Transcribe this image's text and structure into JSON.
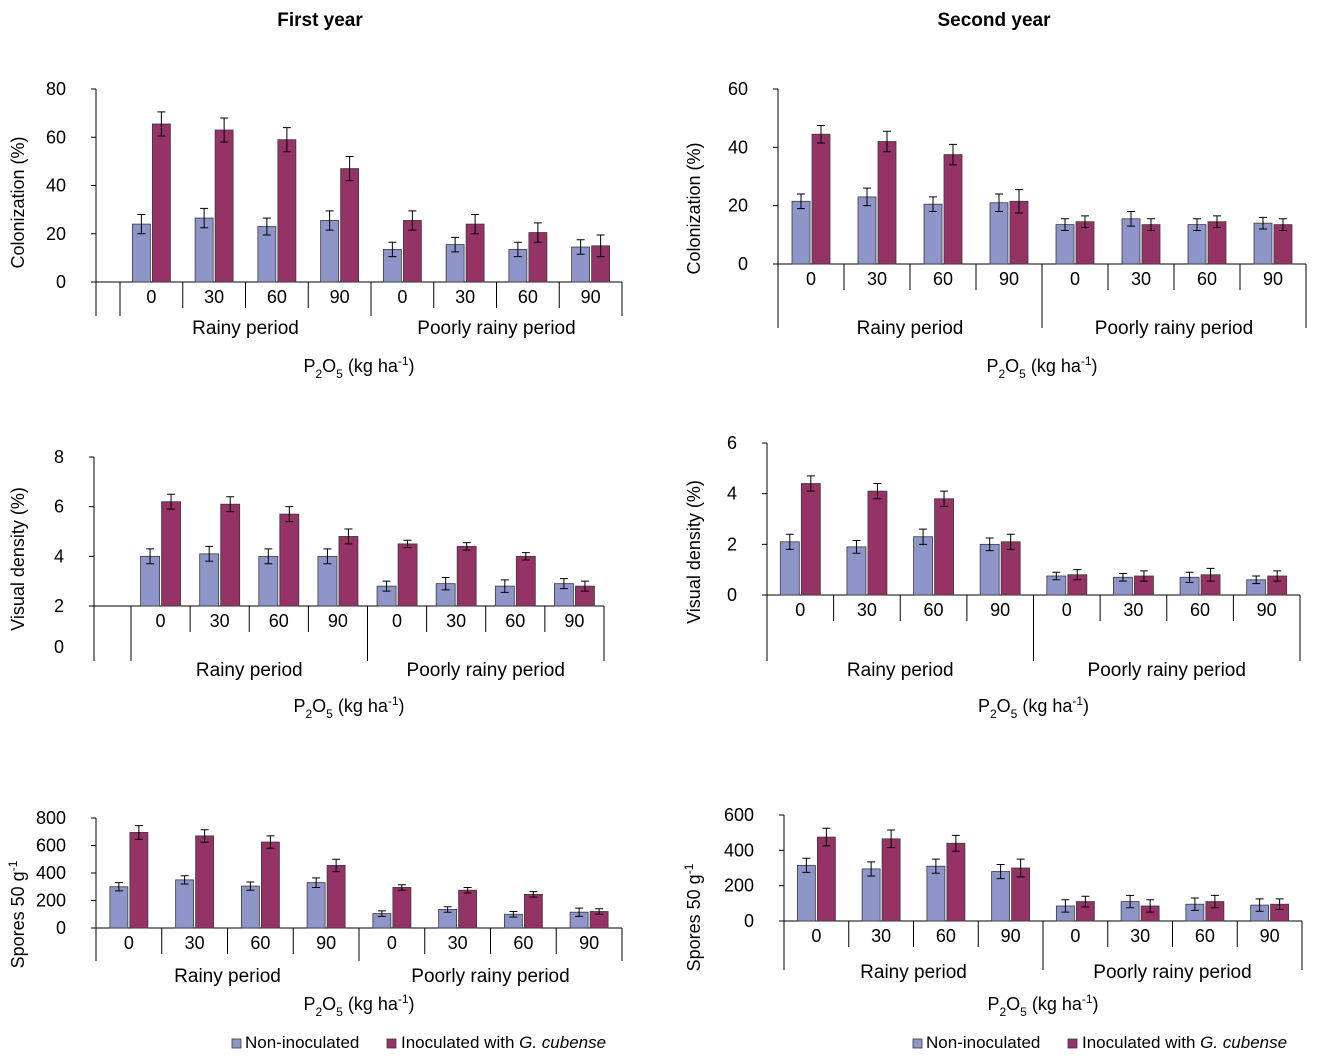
{
  "columns": [
    "First year",
    "Second year"
  ],
  "legend": {
    "non_inoculated": "Non-inoculated",
    "inoculated_prefix": "Inoculated with ",
    "inoculated_species": "G. cubense"
  },
  "colors": {
    "non_inoculated": "#8e95c9",
    "inoculated": "#963366"
  },
  "chart_data": [
    {
      "type": "bar",
      "column": "First year",
      "ylabel": "Colonization  (%)",
      "xlabel": {
        "base": "P",
        "sub1": "2",
        "mid": "O",
        "sub2": "5",
        "unit": " (kg ha",
        "sup": "-1",
        "close": ")"
      },
      "categories": [
        "0",
        "30",
        "60",
        "90",
        "0",
        "30",
        "60",
        "90"
      ],
      "groups": [
        "Rainy period",
        "Poorly rainy period"
      ],
      "yticks": [
        "0",
        "20",
        "40",
        "60",
        "80"
      ],
      "ylim": [
        0,
        80
      ],
      "series": [
        {
          "name": "Non-inoculated",
          "values": [
            24,
            26.5,
            23,
            25.5,
            13.5,
            15.5,
            13.5,
            14.5
          ],
          "errors": [
            4,
            4,
            3.5,
            4,
            3,
            3,
            3,
            3
          ]
        },
        {
          "name": "Inoculated with G. cubense",
          "values": [
            65.5,
            63,
            59,
            47,
            25.5,
            24,
            20.5,
            15
          ],
          "errors": [
            5,
            5,
            5,
            5,
            4,
            4,
            4,
            4.5
          ]
        }
      ]
    },
    {
      "type": "bar",
      "column": "Second year",
      "ylabel": "Colonization  (%)",
      "xlabel": {
        "base": "P",
        "sub1": "2",
        "mid": "O",
        "sub2": "5",
        "unit": " (kg ha",
        "sup": "-1",
        "close": ")"
      },
      "categories": [
        "0",
        "30",
        "60",
        "90",
        "0",
        "30",
        "60",
        "90"
      ],
      "groups": [
        "Rainy period",
        "Poorly rainy period"
      ],
      "yticks": [
        "0",
        "20",
        "40",
        "60"
      ],
      "ylim": [
        0,
        60
      ],
      "series": [
        {
          "name": "Non-inoculated",
          "values": [
            21.5,
            23,
            20.5,
            21,
            13.5,
            15.5,
            13.5,
            14
          ],
          "errors": [
            2.5,
            3,
            2.5,
            3,
            2,
            2.5,
            2,
            2
          ]
        },
        {
          "name": "Inoculated with G. cubense",
          "values": [
            44.5,
            42,
            37.5,
            21.5,
            14.5,
            13.5,
            14.5,
            13.5
          ],
          "errors": [
            3,
            3.5,
            3.5,
            4,
            2,
            2,
            2,
            2
          ]
        }
      ]
    },
    {
      "type": "bar",
      "column": "First year",
      "ylabel": "Visual density (%)",
      "xlabel": {
        "base": "P",
        "sub1": "2",
        "mid": "O",
        "sub2": "5",
        "unit": " (kg ha",
        "sup": "-1",
        "close": ")"
      },
      "categories": [
        "0",
        "30",
        "60",
        "90",
        "0",
        "30",
        "60",
        "90"
      ],
      "groups": [
        "Rainy period",
        "Poorly rainy period"
      ],
      "yticks": [
        "0",
        "2",
        "4",
        "6",
        "8"
      ],
      "ylim": [
        2,
        8
      ],
      "extra_bottom_tick": "0",
      "series": [
        {
          "name": "Non-inoculated",
          "values": [
            4.0,
            4.1,
            4.0,
            4.0,
            2.8,
            2.9,
            2.8,
            2.9
          ],
          "errors": [
            0.3,
            0.3,
            0.3,
            0.3,
            0.2,
            0.25,
            0.25,
            0.2
          ]
        },
        {
          "name": "Inoculated with G. cubense",
          "values": [
            6.2,
            6.1,
            5.7,
            4.8,
            4.5,
            4.4,
            4.0,
            2.8
          ],
          "errors": [
            0.3,
            0.3,
            0.3,
            0.3,
            0.15,
            0.15,
            0.15,
            0.2
          ]
        }
      ]
    },
    {
      "type": "bar",
      "column": "Second year",
      "ylabel": "Visual density (%)",
      "xlabel": {
        "base": "P",
        "sub1": "2",
        "mid": "O",
        "sub2": "5",
        "unit": " (kg ha",
        "sup": "-1",
        "close": ")"
      },
      "categories": [
        "0",
        "30",
        "60",
        "90",
        "0",
        "30",
        "60",
        "90"
      ],
      "groups": [
        "Rainy period",
        "Poorly rainy period"
      ],
      "yticks": [
        "0",
        "2",
        "4",
        "6"
      ],
      "ylim": [
        0,
        6
      ],
      "series": [
        {
          "name": "Non-inoculated",
          "values": [
            2.1,
            1.9,
            2.3,
            2.0,
            0.75,
            0.7,
            0.7,
            0.6
          ],
          "errors": [
            0.3,
            0.25,
            0.3,
            0.25,
            0.15,
            0.15,
            0.2,
            0.15
          ]
        },
        {
          "name": "Inoculated with G. cubense",
          "values": [
            4.4,
            4.1,
            3.8,
            2.1,
            0.8,
            0.75,
            0.8,
            0.75
          ],
          "errors": [
            0.3,
            0.3,
            0.3,
            0.3,
            0.2,
            0.2,
            0.25,
            0.2
          ]
        }
      ]
    },
    {
      "type": "bar",
      "column": "First year",
      "ylabel": "Spores  50 g",
      "ylabel_sup": "-1",
      "xlabel": {
        "base": "P",
        "sub1": "2",
        "mid": "O",
        "sub2": "5",
        "unit": " (kg ha",
        "sup": "-1",
        "close": ")"
      },
      "categories": [
        "0",
        "30",
        "60",
        "90",
        "0",
        "30",
        "60",
        "90"
      ],
      "groups": [
        "Rainy period",
        "Poorly rainy period"
      ],
      "yticks": [
        "0",
        "200",
        "400",
        "600",
        "800"
      ],
      "ylim": [
        0,
        800
      ],
      "series": [
        {
          "name": "Non-inoculated",
          "values": [
            300,
            350,
            305,
            330,
            105,
            135,
            100,
            115
          ],
          "errors": [
            30,
            30,
            30,
            35,
            20,
            20,
            20,
            30
          ]
        },
        {
          "name": "Inoculated with G. cubense",
          "values": [
            695,
            670,
            625,
            455,
            295,
            275,
            245,
            120
          ],
          "errors": [
            50,
            45,
            45,
            45,
            20,
            20,
            20,
            20
          ]
        }
      ]
    },
    {
      "type": "bar",
      "column": "Second year",
      "ylabel": "Spores  50 g",
      "ylabel_sup": "-1",
      "xlabel": {
        "base": "P",
        "sub1": "2",
        "mid": "O",
        "sub2": "5",
        "unit": " (kg ha",
        "sup": "-1",
        "close": ")"
      },
      "categories": [
        "0",
        "30",
        "60",
        "90",
        "0",
        "30",
        "60",
        "90"
      ],
      "groups": [
        "Rainy period",
        "Poorly rainy period"
      ],
      "yticks": [
        "0",
        "200",
        "400",
        "600"
      ],
      "ylim": [
        0,
        600
      ],
      "series": [
        {
          "name": "Non-inoculated",
          "values": [
            315,
            295,
            310,
            280,
            85,
            110,
            95,
            90
          ],
          "errors": [
            40,
            40,
            40,
            40,
            35,
            35,
            35,
            35
          ]
        },
        {
          "name": "Inoculated with G. cubense",
          "values": [
            475,
            465,
            440,
            300,
            110,
            85,
            110,
            95
          ],
          "errors": [
            50,
            50,
            45,
            50,
            30,
            35,
            35,
            30
          ]
        }
      ]
    }
  ]
}
